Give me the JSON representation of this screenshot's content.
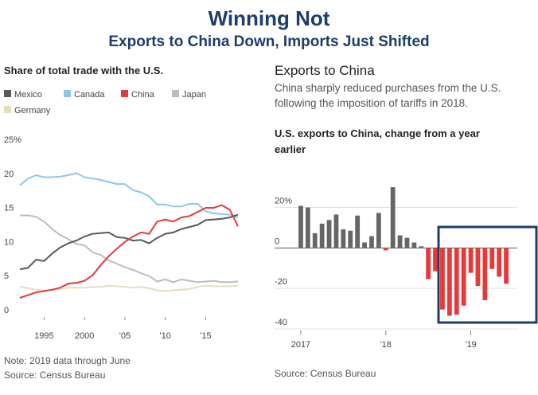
{
  "title": "Winning Not",
  "subtitle": "Exports to China Down, Imports Just Shifted",
  "chart_data": [
    {
      "type": "line",
      "title": "Share of total trade with the U.S.",
      "note": "Note: 2019 data through June",
      "source": "Source: Census Bureau",
      "x": [
        1992,
        1993,
        1994,
        1995,
        1996,
        1997,
        1998,
        1999,
        2000,
        2001,
        2002,
        2003,
        2004,
        2005,
        2006,
        2007,
        2008,
        2009,
        2010,
        2011,
        2012,
        2013,
        2014,
        2015,
        2016,
        2017,
        2018,
        2019
      ],
      "xlim": [
        1992,
        2019
      ],
      "xticks": [
        1995,
        2000,
        {
          "value": 2005,
          "label": "'05"
        },
        {
          "value": 2010,
          "label": "'10"
        },
        {
          "value": 2015,
          "label": "'15"
        }
      ],
      "ylim": [
        0,
        25
      ],
      "yticks": [
        0,
        5,
        10,
        15,
        20,
        {
          "value": 25,
          "label": "25%"
        }
      ],
      "grid": false,
      "series": [
        {
          "name": "Mexico",
          "color": "#595959",
          "values": [
            7,
            7.2,
            8.4,
            8.2,
            9.3,
            10.2,
            10.8,
            11.2,
            11.8,
            12.2,
            12.3,
            12.4,
            11.7,
            11.6,
            11.2,
            11.3,
            10.8,
            11.6,
            12.2,
            12.4,
            12.9,
            13.2,
            13.5,
            14.2,
            14.3,
            14.4,
            14.6,
            15.0
          ]
        },
        {
          "name": "Canada",
          "color": "#8ec6e6",
          "values": [
            19.3,
            20.3,
            20.8,
            20.5,
            20.5,
            20.6,
            20.8,
            21.1,
            20.5,
            20.3,
            20.1,
            19.8,
            19.5,
            19.5,
            18.6,
            18.3,
            17.7,
            16.5,
            16.5,
            16.2,
            16.2,
            16.6,
            16.6,
            15.5,
            15.2,
            15.1,
            15.0,
            14.6
          ]
        },
        {
          "name": "China",
          "color": "#e63a3a",
          "values": [
            2.8,
            3.2,
            3.6,
            3.8,
            4.0,
            4.3,
            4.9,
            5.0,
            5.3,
            6.1,
            7.6,
            8.9,
            10.0,
            11.0,
            11.8,
            12.4,
            12.2,
            14.0,
            14.3,
            14.0,
            14.6,
            14.8,
            15.4,
            16.0,
            16.0,
            16.4,
            15.7,
            13.3
          ]
        },
        {
          "name": "Japan",
          "color": "#bdbdbd",
          "values": [
            14.9,
            14.9,
            14.7,
            14.0,
            12.9,
            12.0,
            11.4,
            10.7,
            10.5,
            9.5,
            9.1,
            8.3,
            7.8,
            7.3,
            6.9,
            6.4,
            6.0,
            5.2,
            5.5,
            5.1,
            5.5,
            5.3,
            5.1,
            5.2,
            5.3,
            5.1,
            5.1,
            5.2
          ]
        },
        {
          "name": "Germany",
          "color": "#e6dcc0",
          "values": [
            4.5,
            4.2,
            4.0,
            3.9,
            4.0,
            4.1,
            4.3,
            4.3,
            4.3,
            4.4,
            4.4,
            4.6,
            4.5,
            4.4,
            4.3,
            4.4,
            4.2,
            3.9,
            3.8,
            3.9,
            4.0,
            4.1,
            4.4,
            4.6,
            4.5,
            4.5,
            4.5,
            4.6
          ]
        }
      ]
    },
    {
      "type": "bar",
      "heading": "Exports to China",
      "description": "China sharply reduced purchases from the U.S. following the imposition of tariffs in 2018.",
      "title": "U.S. exports to China, change from a year earlier",
      "source": "Source: Census Bureau",
      "categories": [
        "2017",
        null,
        null,
        null,
        null,
        null,
        null,
        null,
        null,
        null,
        null,
        null,
        "'18",
        null,
        null,
        null,
        null,
        null,
        null,
        null,
        null,
        null,
        null,
        null,
        "'19",
        null,
        null,
        null,
        null,
        null
      ],
      "values": [
        20.8,
        20,
        7.3,
        12,
        13.8,
        16.5,
        9.2,
        8.5,
        16,
        2.7,
        5.8,
        17.3,
        -1.2,
        30,
        6.2,
        5,
        2.7,
        0.8,
        -15.4,
        -11.5,
        -30.4,
        -33.5,
        -33,
        -28.5,
        -12.3,
        -18.8,
        -25.8,
        -10.4,
        -14.2,
        -17.7
      ],
      "color": "#666666",
      "negative_color": "#e63a3a",
      "ylim": [
        -40,
        32
      ],
      "yticks": [
        {
          "value": 20,
          "label": "20%"
        },
        0,
        -20,
        -40
      ],
      "grid": true
    }
  ]
}
